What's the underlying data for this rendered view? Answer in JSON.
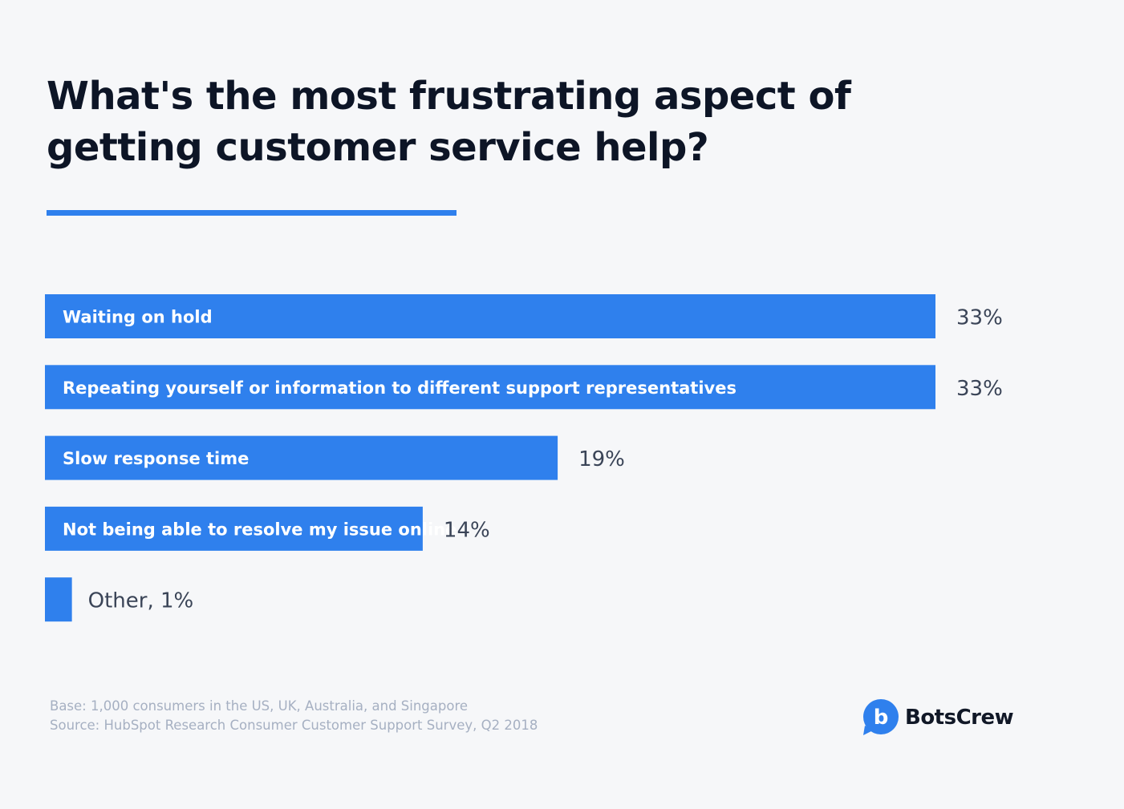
{
  "title": {
    "line1": "What's the most frustrating aspect of",
    "line2": "getting customer service help?"
  },
  "chart_data": {
    "type": "bar",
    "orientation": "horizontal",
    "categories": [
      "Waiting on hold",
      "Repeating yourself or information to different support representatives",
      "Slow response time",
      "Not being able to resolve my issue online",
      "Other"
    ],
    "values": [
      33,
      33,
      19,
      14,
      1
    ],
    "value_labels": [
      "33%",
      "33%",
      "19%",
      "14%",
      "Other, 1%"
    ],
    "unit": "%",
    "xlim": [
      0,
      33
    ],
    "bar_color": "#2f80ed",
    "grid": false,
    "legend": "none"
  },
  "notes": {
    "base": "Base: 1,000 consumers in the US, UK, Australia, and Singapore",
    "source": "Source: HubSpot Research Consumer Customer Support Survey, Q2 2018"
  },
  "brand": {
    "icon": "botscrew-logo-icon",
    "icon_letter": "b",
    "name": "BotsCrew",
    "color": "#2f80ed"
  }
}
